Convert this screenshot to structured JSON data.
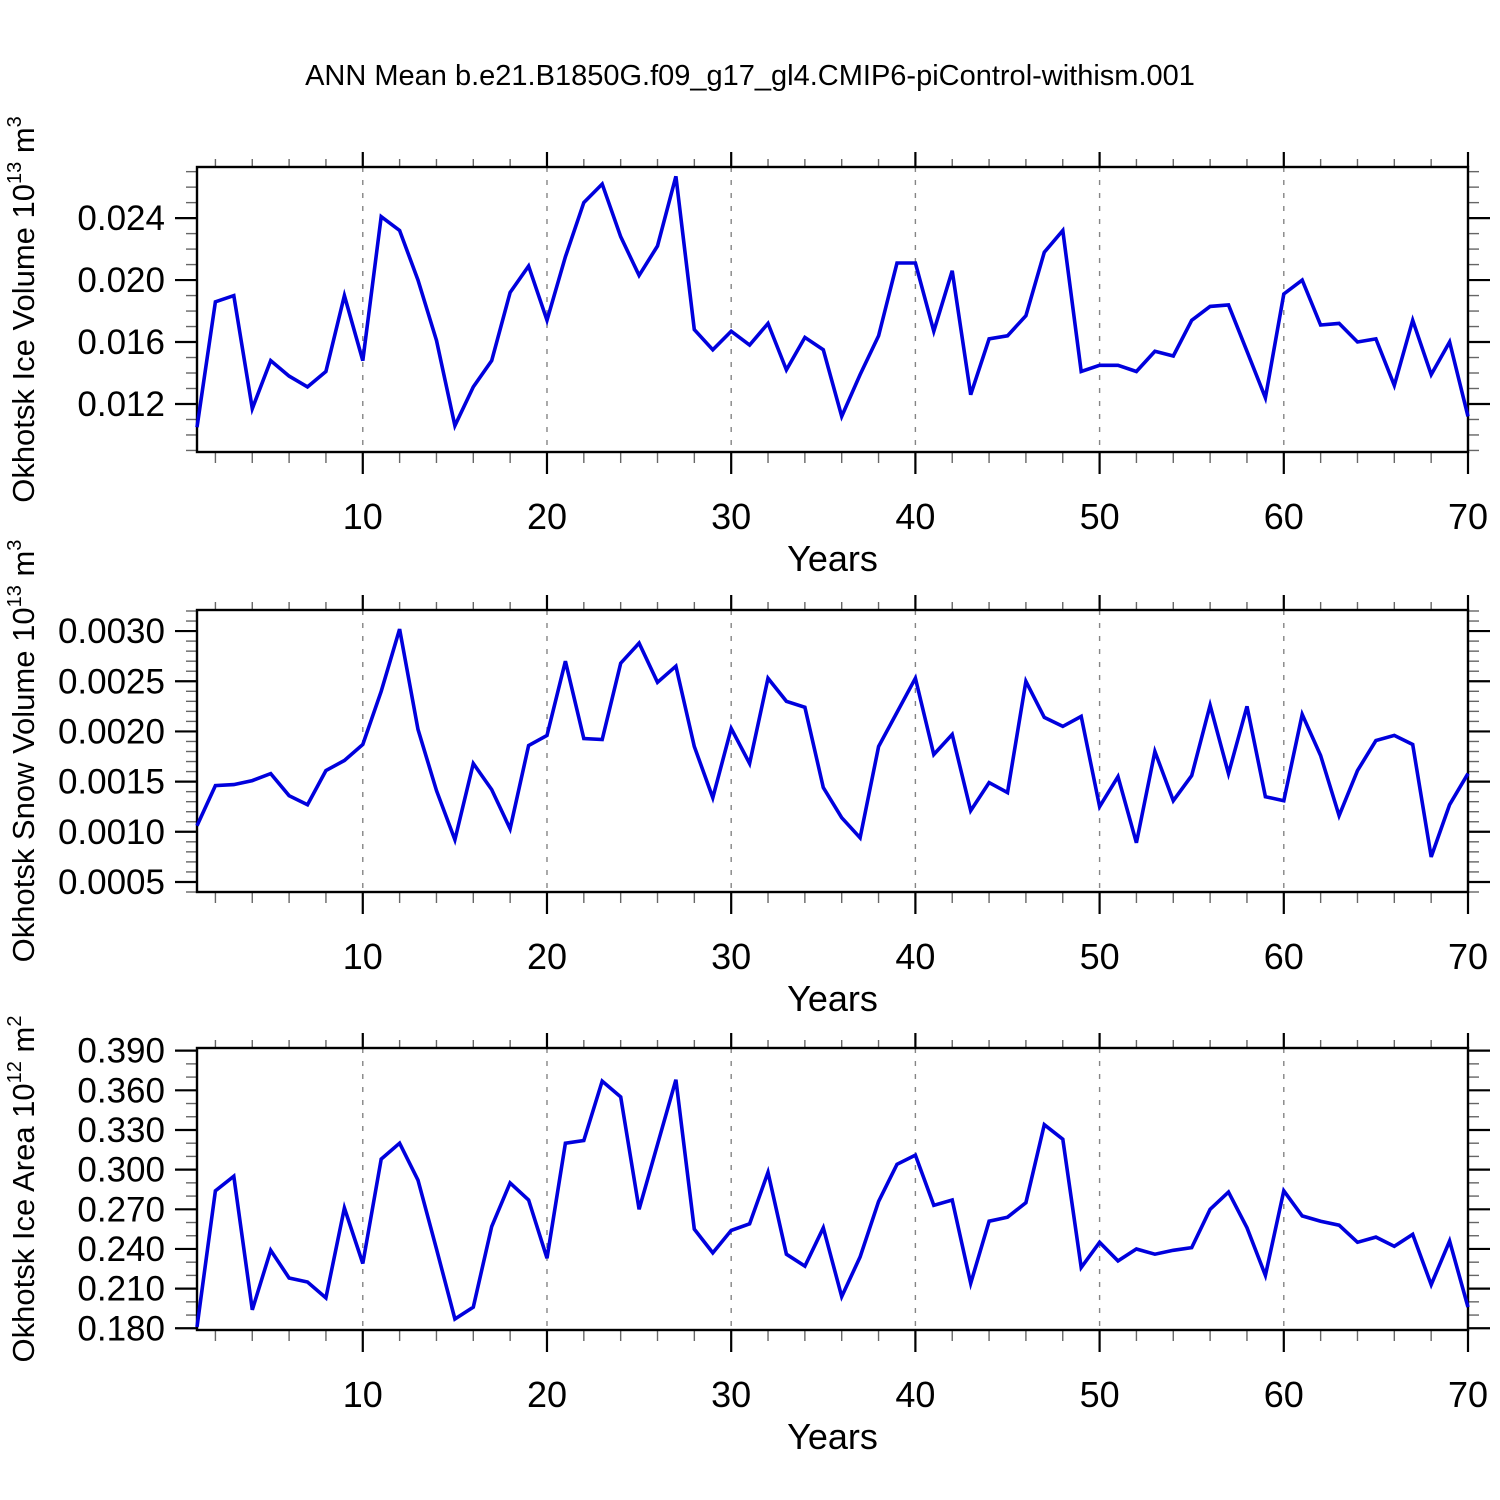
{
  "page": {
    "title": "ANN Mean b.e21.B1850G.f09_g17_gl4.CMIP6-piControl-withism.001"
  },
  "chart_data": [
    {
      "type": "line",
      "name": "okhotsk-ice-volume",
      "title": "",
      "xlabel": "Years",
      "ylabel": "Okhotsk Ice Volume 10^13 m^3",
      "ylabel_parts": [
        {
          "text": "Okhotsk Ice Volume 10",
          "sup": false
        },
        {
          "text": "13",
          "sup": true
        },
        {
          "text": " m",
          "sup": false
        },
        {
          "text": "3",
          "sup": true
        }
      ],
      "line_color": "#0000dd",
      "grid_on": true,
      "gridlines_x": [
        10,
        20,
        30,
        40,
        50,
        60
      ],
      "x_range": [
        1,
        70
      ],
      "x_step": 1,
      "xticks": [
        10,
        20,
        30,
        40,
        50,
        60,
        70
      ],
      "x_minor_step": 2,
      "ylim": [
        0.0089,
        0.0273
      ],
      "yticks": [
        0.012,
        0.016,
        0.02,
        0.024
      ],
      "ytick_labels": [
        "0.012",
        "0.016",
        "0.020",
        "0.024"
      ],
      "y_minor_step": 0.001,
      "values": [
        0.0105,
        0.0186,
        0.019,
        0.0117,
        0.0148,
        0.0138,
        0.0131,
        0.0141,
        0.019,
        0.0148,
        0.0241,
        0.0232,
        0.02,
        0.0161,
        0.0106,
        0.0131,
        0.0148,
        0.0192,
        0.0209,
        0.0174,
        0.0215,
        0.025,
        0.0262,
        0.0228,
        0.0203,
        0.0222,
        0.0267,
        0.0168,
        0.0155,
        0.0167,
        0.0158,
        0.0172,
        0.0142,
        0.0163,
        0.0155,
        0.0112,
        0.0139,
        0.0164,
        0.0211,
        0.0211,
        0.0167,
        0.0206,
        0.0126,
        0.0162,
        0.0164,
        0.0177,
        0.0218,
        0.0232,
        0.0141,
        0.0145,
        0.0145,
        0.0141,
        0.0154,
        0.0151,
        0.0174,
        0.0183,
        0.0184,
        0.0154,
        0.0124,
        0.0191,
        0.02,
        0.0171,
        0.0172,
        0.016,
        0.0162,
        0.0132,
        0.0174,
        0.0139,
        0.016,
        0.0112
      ]
    },
    {
      "type": "line",
      "name": "okhotsk-snow-volume",
      "title": "",
      "xlabel": "Years",
      "ylabel": "Okhotsk Snow Volume 10^13 m^3",
      "ylabel_parts": [
        {
          "text": "Okhotsk Snow Volume 10",
          "sup": false
        },
        {
          "text": "13",
          "sup": true
        },
        {
          "text": " m",
          "sup": false
        },
        {
          "text": "3",
          "sup": true
        }
      ],
      "line_color": "#0000dd",
      "grid_on": true,
      "gridlines_x": [
        10,
        20,
        30,
        40,
        50,
        60
      ],
      "x_range": [
        1,
        70
      ],
      "x_step": 1,
      "xticks": [
        10,
        20,
        30,
        40,
        50,
        60,
        70
      ],
      "x_minor_step": 2,
      "ylim": [
        0.0004,
        0.00321
      ],
      "yticks": [
        0.0005,
        0.001,
        0.0015,
        0.002,
        0.0025,
        0.003
      ],
      "ytick_labels": [
        "0.0005",
        "0.0010",
        "0.0015",
        "0.0020",
        "0.0025",
        "0.0030"
      ],
      "y_minor_step": 0.0001,
      "values": [
        0.00106,
        0.00146,
        0.00147,
        0.00151,
        0.00158,
        0.00136,
        0.00127,
        0.00161,
        0.00171,
        0.00187,
        0.0024,
        0.00302,
        0.00202,
        0.00141,
        0.00092,
        0.00168,
        0.00142,
        0.00103,
        0.00186,
        0.00196,
        0.0027,
        0.00193,
        0.00192,
        0.00268,
        0.00288,
        0.00249,
        0.00265,
        0.00185,
        0.00134,
        0.00203,
        0.00168,
        0.00253,
        0.0023,
        0.00224,
        0.00144,
        0.00114,
        0.00094,
        0.00185,
        0.00219,
        0.00253,
        0.00177,
        0.00197,
        0.00121,
        0.00149,
        0.00139,
        0.0025,
        0.00214,
        0.00205,
        0.00215,
        0.00125,
        0.00155,
        0.00089,
        0.0018,
        0.00131,
        0.00156,
        0.00226,
        0.00158,
        0.00225,
        0.00135,
        0.00131,
        0.00217,
        0.00176,
        0.00116,
        0.00161,
        0.00191,
        0.00196,
        0.00187,
        0.00075,
        0.00127,
        0.00158
      ]
    },
    {
      "type": "line",
      "name": "okhotsk-ice-area",
      "title": "",
      "xlabel": "Years",
      "ylabel": "Okhotsk Ice Area 10^12 m^2",
      "ylabel_parts": [
        {
          "text": "Okhotsk Ice Area 10",
          "sup": false
        },
        {
          "text": "12",
          "sup": true
        },
        {
          "text": " m",
          "sup": false
        },
        {
          "text": "2",
          "sup": true
        }
      ],
      "line_color": "#0000dd",
      "grid_on": true,
      "gridlines_x": [
        10,
        20,
        30,
        40,
        50,
        60
      ],
      "x_range": [
        1,
        70
      ],
      "x_step": 1,
      "xticks": [
        10,
        20,
        30,
        40,
        50,
        60,
        70
      ],
      "x_minor_step": 2,
      "ylim": [
        0.1787,
        0.392
      ],
      "yticks": [
        0.18,
        0.21,
        0.24,
        0.27,
        0.3,
        0.33,
        0.36,
        0.39
      ],
      "ytick_labels": [
        "0.180",
        "0.210",
        "0.240",
        "0.270",
        "0.300",
        "0.330",
        "0.360",
        "0.390"
      ],
      "y_minor_step": 0.01,
      "values": [
        0.181,
        0.284,
        0.295,
        0.194,
        0.239,
        0.218,
        0.215,
        0.203,
        0.271,
        0.229,
        0.308,
        0.32,
        0.292,
        0.24,
        0.187,
        0.196,
        0.257,
        0.29,
        0.277,
        0.233,
        0.32,
        0.322,
        0.367,
        0.355,
        0.27,
        0.319,
        0.368,
        0.255,
        0.237,
        0.254,
        0.259,
        0.298,
        0.236,
        0.227,
        0.256,
        0.204,
        0.234,
        0.276,
        0.304,
        0.311,
        0.273,
        0.277,
        0.214,
        0.261,
        0.264,
        0.275,
        0.334,
        0.323,
        0.226,
        0.245,
        0.231,
        0.24,
        0.236,
        0.239,
        0.241,
        0.27,
        0.283,
        0.256,
        0.22,
        0.284,
        0.265,
        0.261,
        0.258,
        0.245,
        0.249,
        0.242,
        0.251,
        0.213,
        0.246,
        0.196
      ]
    }
  ]
}
